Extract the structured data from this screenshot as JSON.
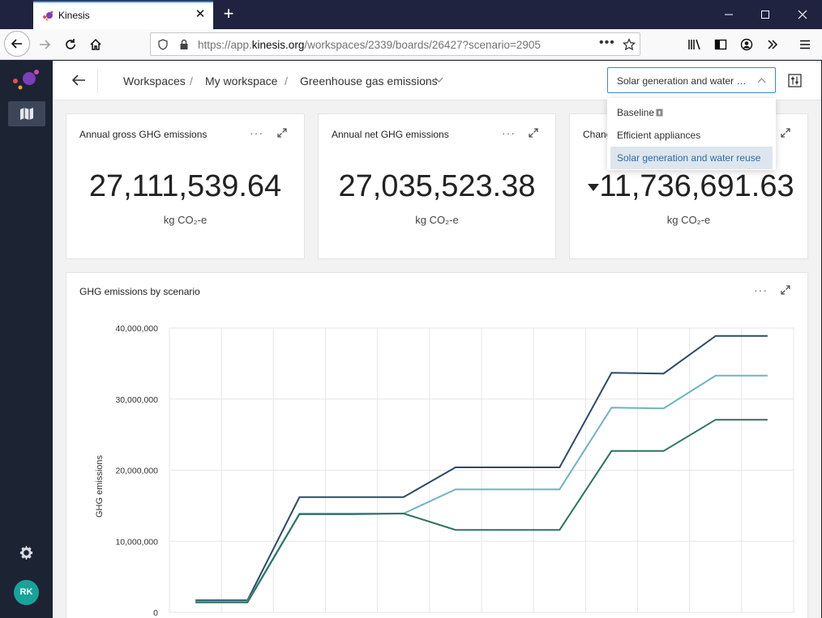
{
  "browser": {
    "tab_title": "Kinesis",
    "url_prefix": "https://app.",
    "url_domain": "kinesis.org",
    "url_path": "/workspaces/2339/boards/26427?scenario=2905"
  },
  "sidebar": {
    "avatar_initials": "RK"
  },
  "header": {
    "breadcrumbs": [
      "Workspaces",
      "My workspace",
      "Greenhouse gas emissions"
    ],
    "separator": "/",
    "scenario_selected": "Solar generation and water reuse"
  },
  "scenario_options": [
    {
      "label": "Baseline"
    },
    {
      "label": "Efficient appliances"
    },
    {
      "label": "Solar generation and water reuse"
    }
  ],
  "cards": [
    {
      "title": "Annual gross GHG emissions",
      "value": "27,111,539.64",
      "unit": "kg CO₂-e"
    },
    {
      "title": "Annual net GHG emissions",
      "value": "27,035,523.38",
      "unit": "kg CO₂-e"
    },
    {
      "title": "Chang",
      "value": "11,736,691.63",
      "unit": "kg CO₂-e",
      "trend": "down"
    }
  ],
  "chart_card": {
    "title": "GHG emissions by scenario"
  },
  "chart_data": {
    "type": "line",
    "title": "GHG emissions by scenario",
    "xlabel": "",
    "ylabel": "GHG emissions",
    "ylim": [
      0,
      40000000
    ],
    "yticks": [
      0,
      10000000,
      20000000,
      30000000,
      40000000
    ],
    "ytick_labels": [
      "0",
      "10,000,000",
      "20,000,000",
      "30,000,000",
      "40,000,000"
    ],
    "grid": true,
    "series": [
      {
        "color": "#2d4a6b",
        "values": [
          1700000,
          1700000,
          16200000,
          16200000,
          16200000,
          20400000,
          20400000,
          20400000,
          33700000,
          33600000,
          38900000,
          38900000
        ]
      },
      {
        "color": "#6eb5c0",
        "values": [
          1500000,
          1500000,
          13900000,
          13900000,
          13900000,
          17300000,
          17300000,
          17300000,
          28800000,
          28700000,
          33300000,
          33300000
        ]
      },
      {
        "color": "#2c7360",
        "values": [
          1400000,
          1400000,
          13800000,
          13800000,
          13900000,
          11600000,
          11600000,
          11600000,
          22700000,
          22700000,
          27100000,
          27100000
        ]
      }
    ]
  }
}
